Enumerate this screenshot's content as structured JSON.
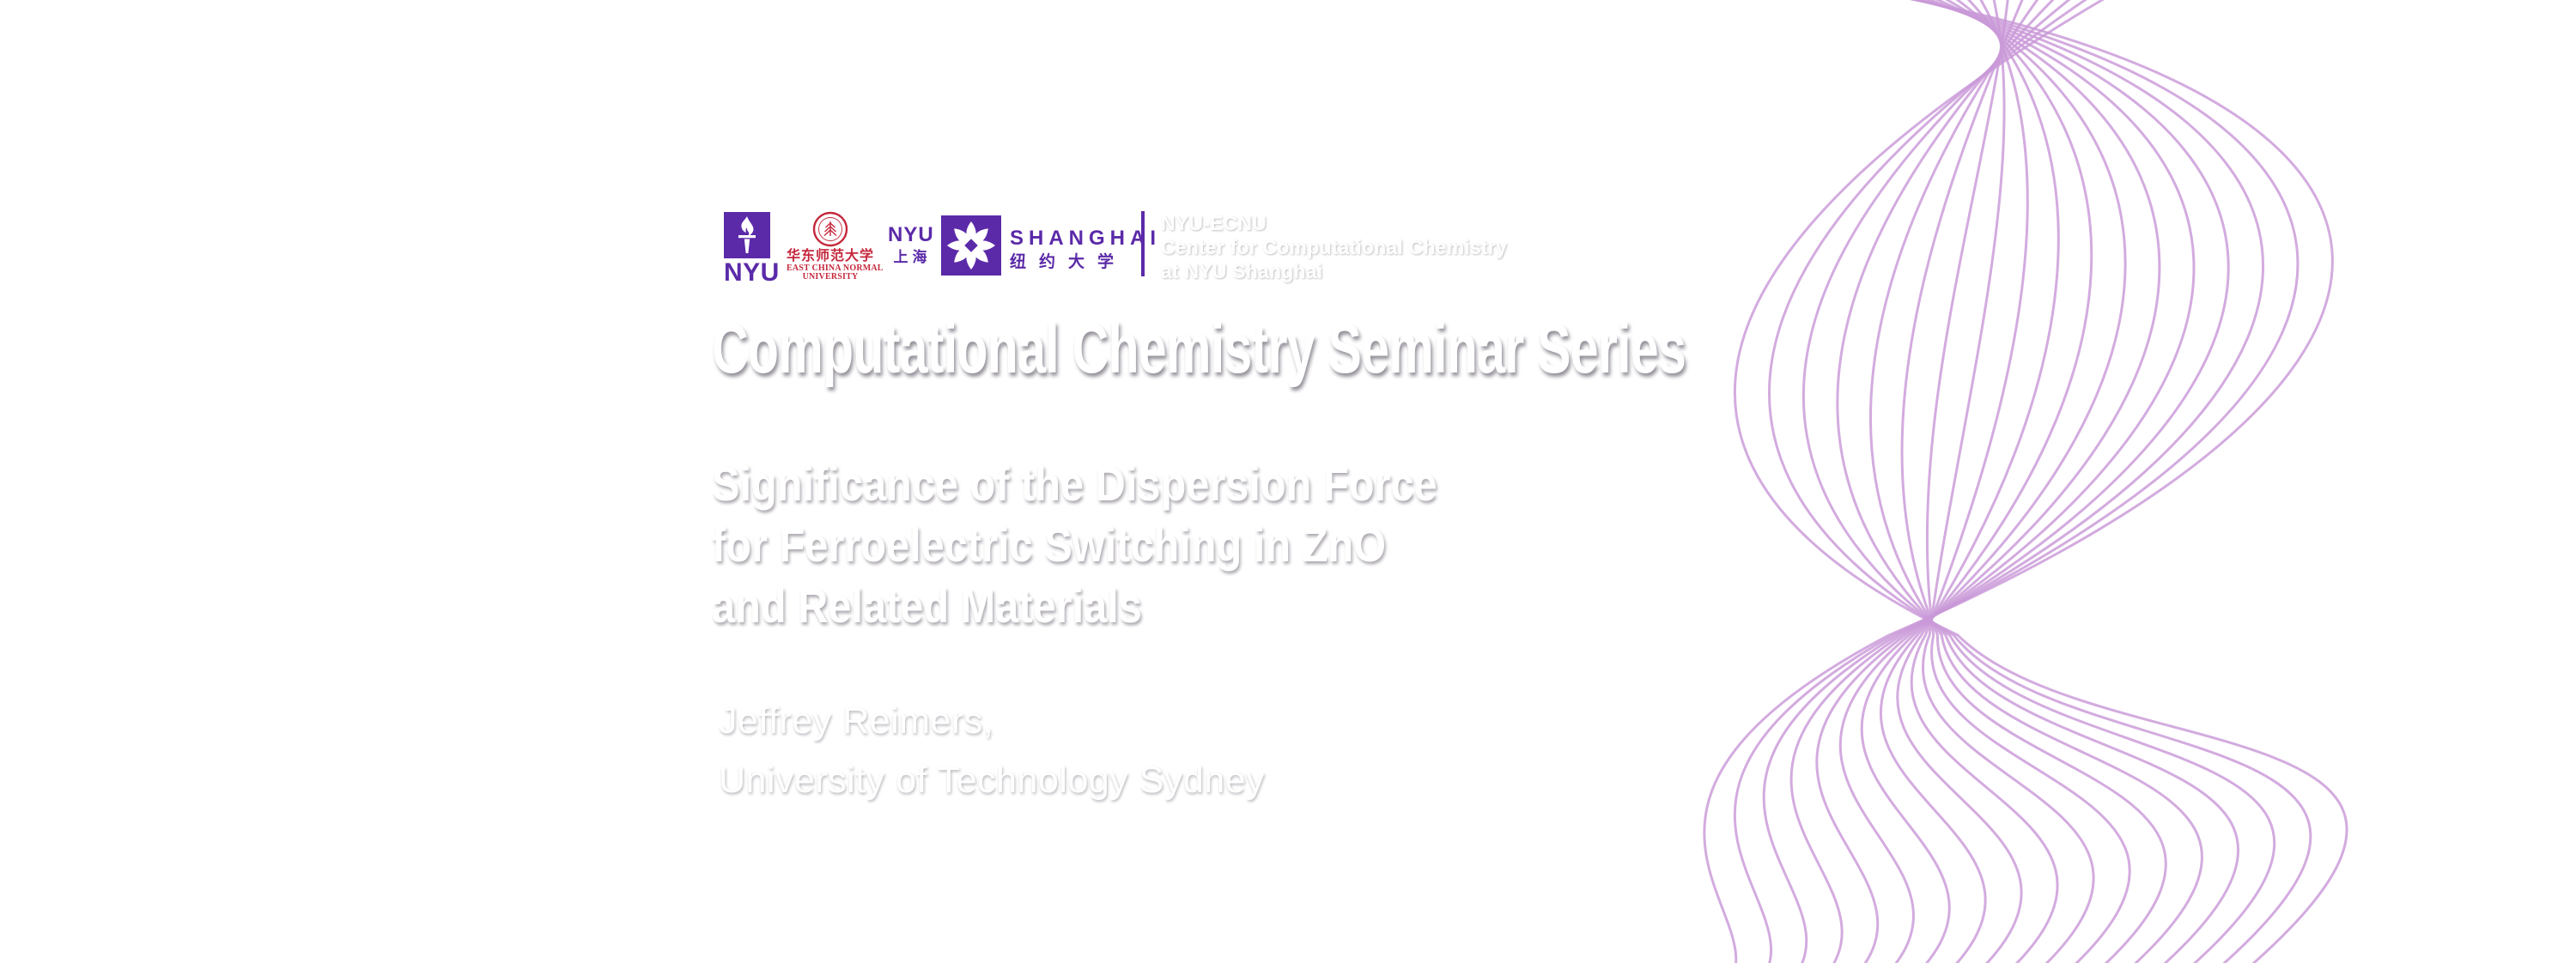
{
  "logos": {
    "nyu": {
      "wordmark": "NYU"
    },
    "ecnu": {
      "calligraphy": "华东师范大学",
      "name_line1": "EAST CHINA NORMAL",
      "name_line2": "UNIVERSITY"
    },
    "nyu_shanghai": {
      "nyu": "NYU",
      "shanghai_cn": "上海",
      "shanghai_en": "SHANGHAI",
      "daxue_cn": "纽约大学"
    }
  },
  "center_block": {
    "line1": "NYU-ECNU",
    "line2": "Center for Computational Chemistry",
    "line3": "at NYU Shanghai"
  },
  "series_title": "Computational Chemistry Seminar Series",
  "talk_title": {
    "line1": "Significance of the Dispersion Force",
    "line2": "for Ferroelectric Switching in ZnO",
    "line3": "and Related Materials"
  },
  "speaker": {
    "name": "Jeffrey Reimers,",
    "affiliation": "University of Technology Sydney"
  },
  "colors": {
    "nyu_purple": "#5b2aa8",
    "ecnu_red": "#c5283c",
    "wave_line": "#c998d8",
    "background_left": "#9cc8b4",
    "background_right": "#2f1848",
    "text": "#ffffff"
  },
  "decor": {
    "wave_line_count": 18
  }
}
